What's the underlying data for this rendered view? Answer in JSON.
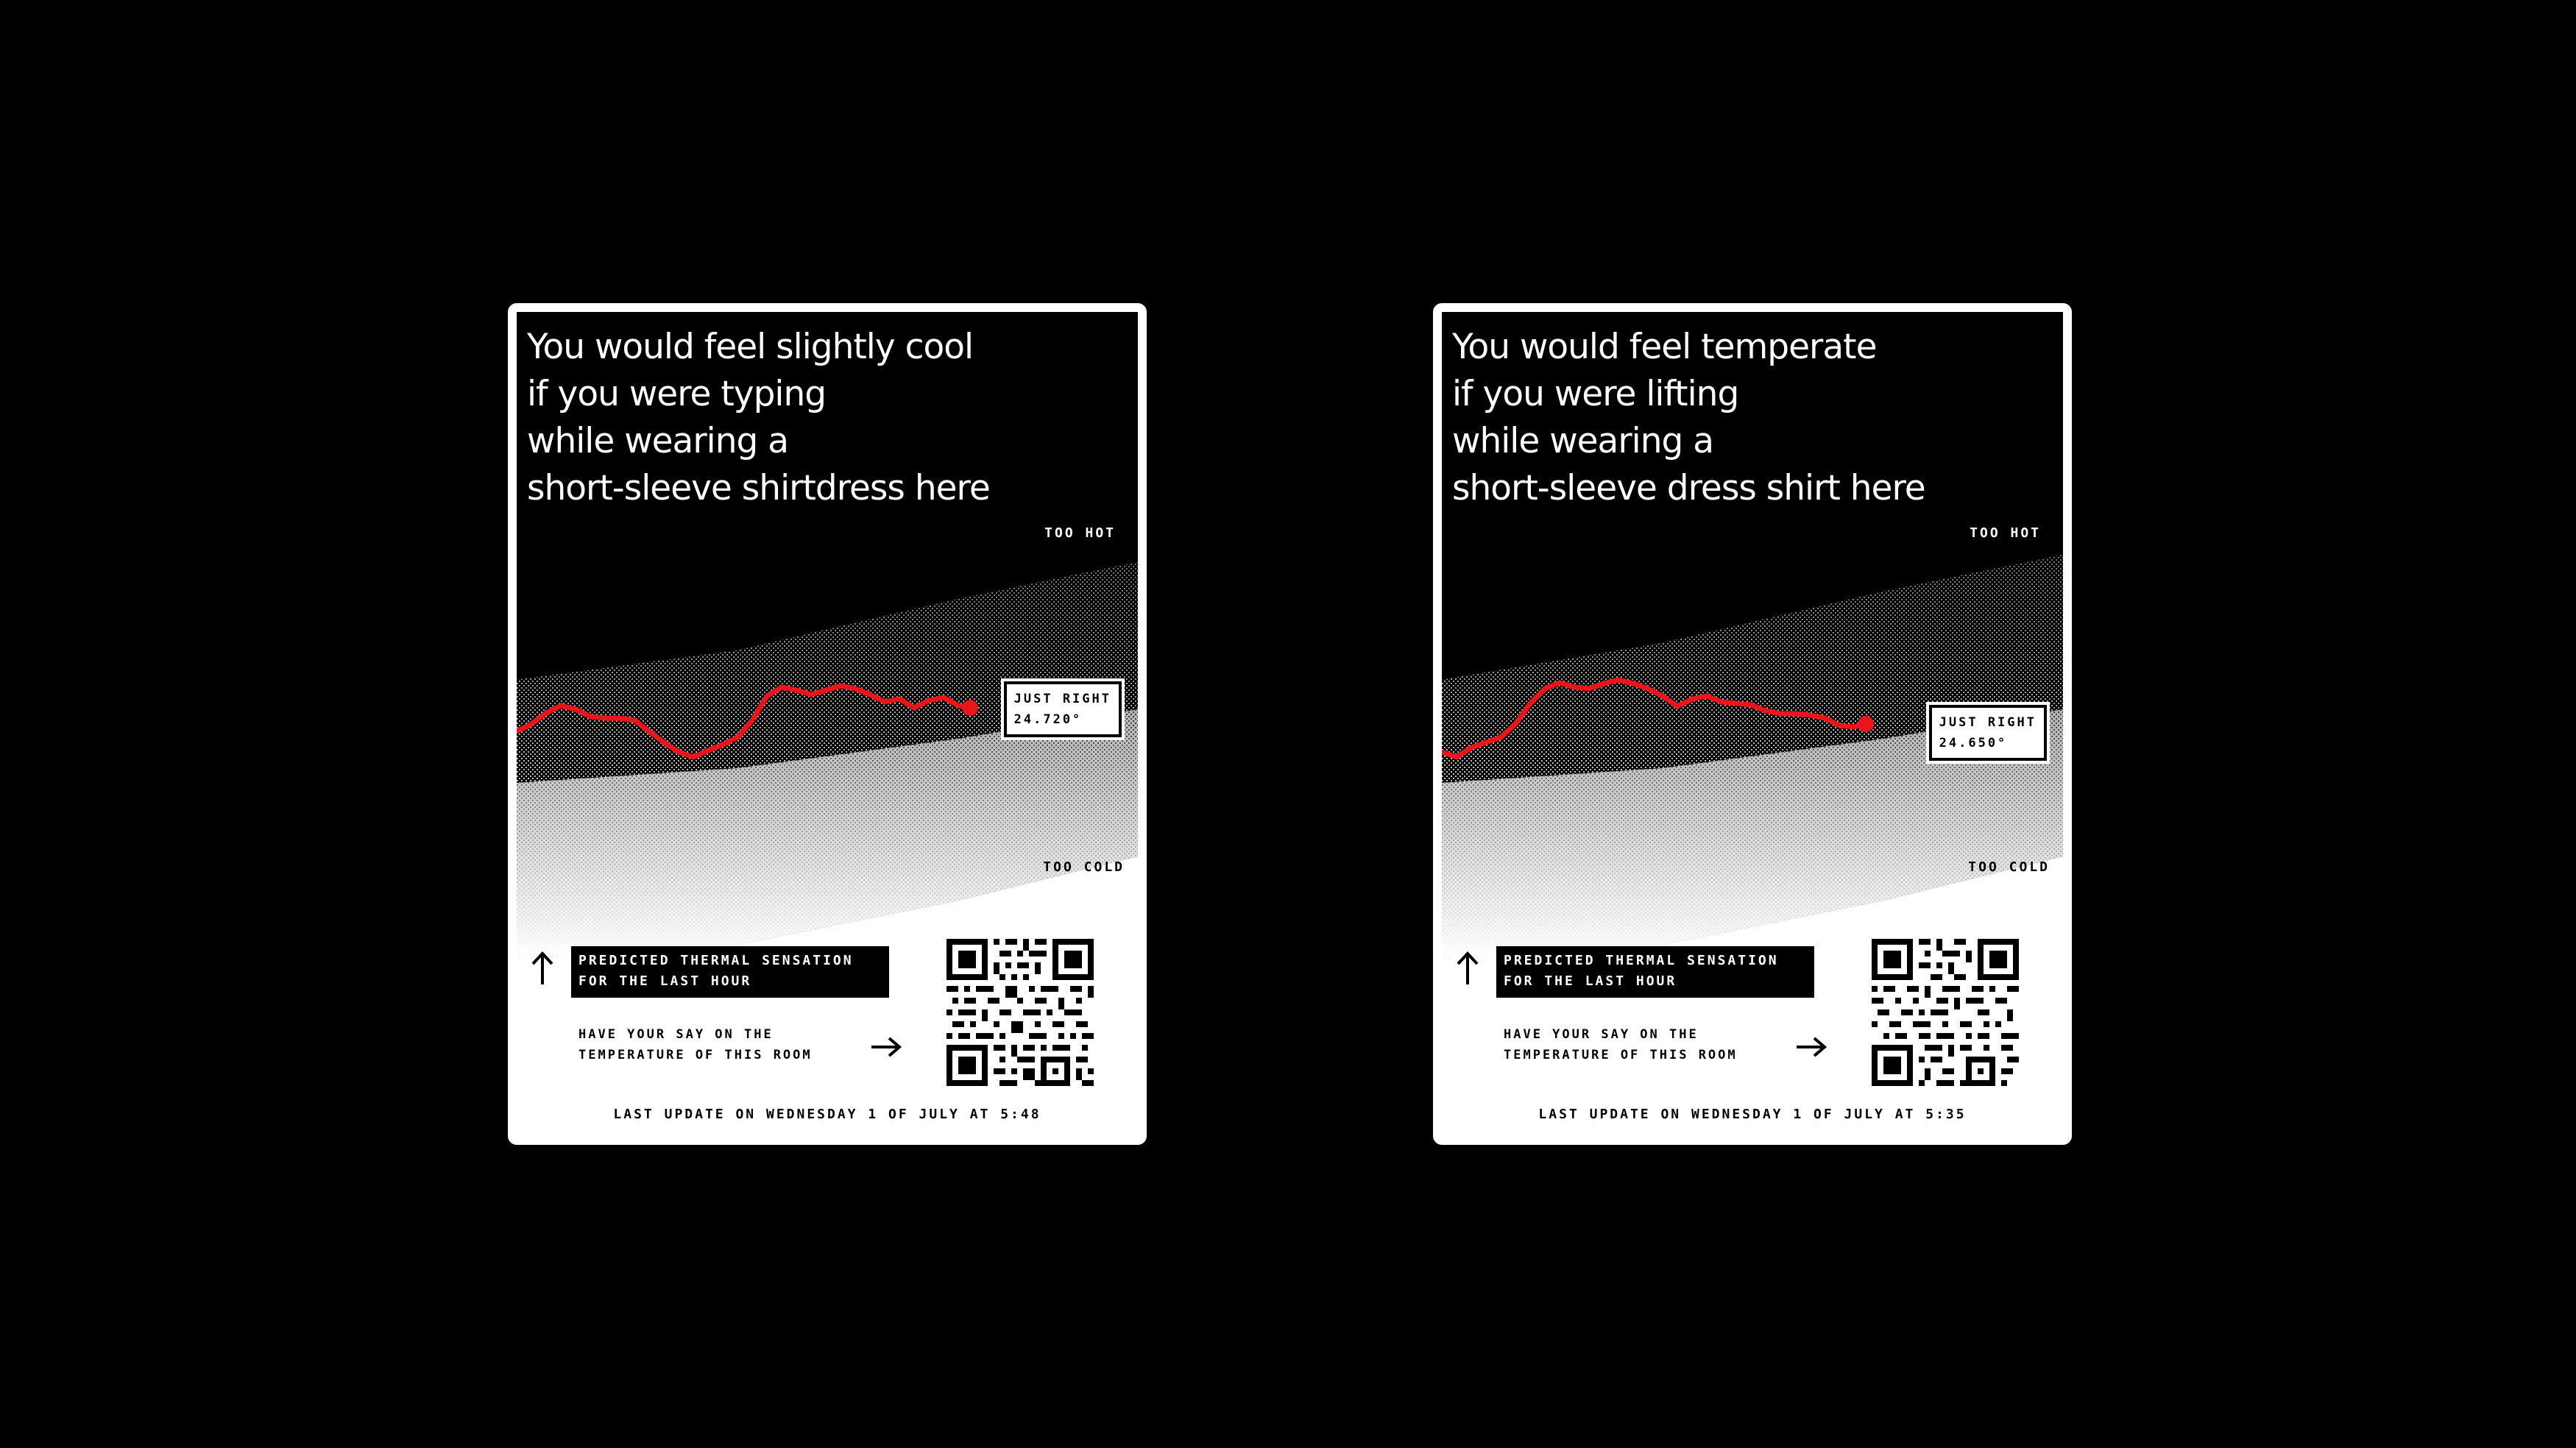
{
  "colors": {
    "background": "#000000",
    "panel_dark": "#000000",
    "panel_light": "#ffffff",
    "trend_line": "#e8161b"
  },
  "displays": [
    {
      "headline_lines": [
        "You would feel slightly cool",
        "if you were typing",
        "while wearing a",
        "short-sleeve shirtdress here"
      ],
      "too_hot": "TOO HOT",
      "too_cold": "TOO COLD",
      "badge": {
        "label": "JUST RIGHT",
        "value": "24.720°"
      },
      "info": [
        "PREDICTED THERMAL SENSATION",
        "FOR THE LAST HOUR"
      ],
      "say": [
        "HAVE YOUR SAY ON THE",
        "TEMPERATURE OF THIS ROOM"
      ],
      "footer": "LAST UPDATE ON WEDNESDAY 1 OF JULY AT 5:48",
      "icons": [
        "arrow-up-icon",
        "arrow-right-icon",
        "qr-code-icon"
      ]
    },
    {
      "headline_lines": [
        "You would feel temperate",
        "if you were lifting",
        "while wearing a",
        "short-sleeve dress shirt here"
      ],
      "too_hot": "TOO HOT",
      "too_cold": "TOO COLD",
      "badge": {
        "label": "JUST RIGHT",
        "value": "24.650°"
      },
      "info": [
        "PREDICTED THERMAL SENSATION",
        "FOR THE LAST HOUR"
      ],
      "say": [
        "HAVE YOUR SAY ON THE",
        "TEMPERATURE OF THIS ROOM"
      ],
      "footer": "LAST UPDATE ON WEDNESDAY 1 OF JULY AT 5:35",
      "icons": [
        "arrow-up-icon",
        "arrow-right-icon",
        "qr-code-icon"
      ]
    }
  ]
}
